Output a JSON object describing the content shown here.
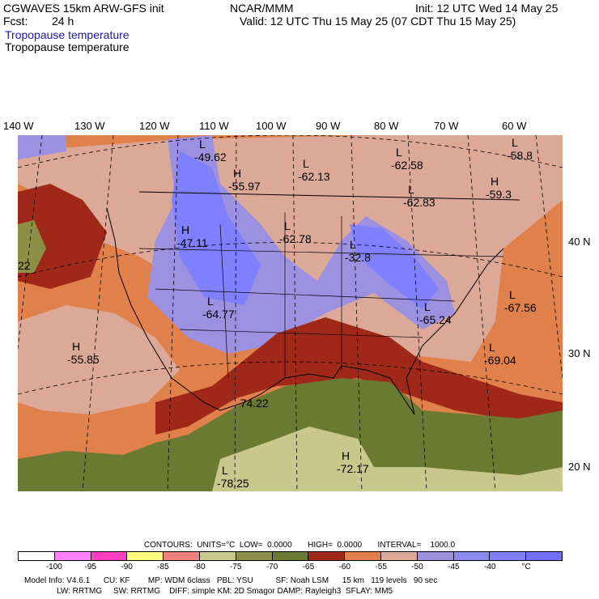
{
  "header": {
    "model": "CGWAVES 15km ARW-GFS init",
    "fcst_label": "Fcst:",
    "fcst_value": "24 h",
    "center": "NCAR/MMM",
    "init": "Init: 12 UTC Wed 14 May 25",
    "valid": "Valid: 12 UTC Thu 15 May 25 (07 CDT Thu 15 May 25)",
    "field1": "Tropopause temperature",
    "field2": "Tropopause temperature"
  },
  "longitude_labels": [
    "140 W",
    "130 W",
    "120 W",
    "110 W",
    "100 W",
    "90 W",
    "80 W",
    "70 W",
    "60 W"
  ],
  "latitude_labels": [
    "40 N",
    "30 N",
    "20 N"
  ],
  "map_labels": [
    {
      "mark": "L",
      "value": "-49.62"
    },
    {
      "mark": "H",
      "value": "-55.97"
    },
    {
      "mark": "L",
      "value": "-62.13"
    },
    {
      "mark": "L",
      "value": "-62.58"
    },
    {
      "mark": "L",
      "value": "-62.83"
    },
    {
      "mark": "L",
      "value": "-58.8"
    },
    {
      "mark": "H",
      "value": "-59.3"
    },
    {
      "mark": "H",
      "value": "-47.11"
    },
    {
      "mark": "L",
      "value": "-62.78"
    },
    {
      "mark": "L",
      "value": "-32.8"
    },
    {
      "mark": "L",
      "value": "-64.77"
    },
    {
      "mark": "L",
      "value": "-65.24"
    },
    {
      "mark": "L",
      "value": "-67.56"
    },
    {
      "mark": "L",
      "value": "-69.04"
    },
    {
      "mark": "H",
      "value": "-55.85"
    },
    {
      "mark": "",
      "value": "-74.22"
    },
    {
      "mark": "H",
      "value": "-72.17"
    },
    {
      "mark": "L",
      "value": "-78.25"
    },
    {
      "mark": "",
      "value": "22"
    }
  ],
  "contours_line": "CONTOURS:  UNITS=°C  LOW=  0.0000       HIGH=  0.0000       INTERVAL=    1000.0",
  "colorbar": {
    "colors": [
      "#ffffff",
      "#ff80ff",
      "#ff40c0",
      "#ffff80",
      "#f08080",
      "#c8c88c",
      "#8c9046",
      "#6b7a32",
      "#a02818",
      "#e0804a",
      "#dca898",
      "#9c90e0",
      "#8c8cf0",
      "#8080ff",
      "#7070ff"
    ],
    "ticks": [
      "-100",
      "-95",
      "-90",
      "-85",
      "-80",
      "-75",
      "-70",
      "-65",
      "-60",
      "-55",
      "-50",
      "-45",
      "-40",
      "°C"
    ]
  },
  "model_info": {
    "line1": "Model Info: V4.6.1      CU: KF        MP: WDM 6class   PBL: YSU          SF: Noah LSM      15 km   119 levels   90 sec",
    "line2": "LW: RRTMG     SW: RRTMG    DIFF: simple KM: 2D Smagor DAMP: Rayleigh3  SFLAY: MM5"
  }
}
